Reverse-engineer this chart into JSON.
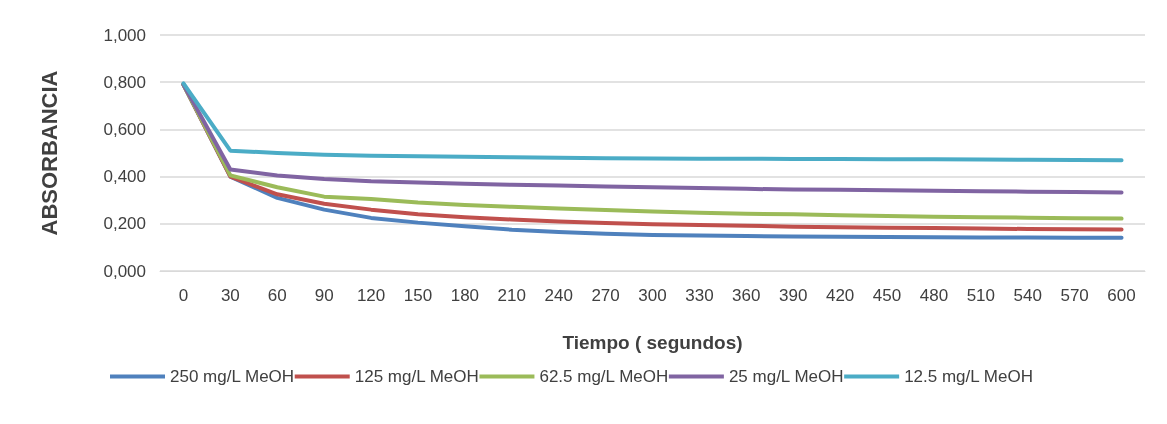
{
  "chart_data": {
    "type": "line",
    "xlabel": "Tiempo ( segundos)",
    "ylabel": "ABSORBANCIA",
    "categories": [
      "0",
      "30",
      "60",
      "90",
      "120",
      "150",
      "180",
      "210",
      "240",
      "270",
      "300",
      "330",
      "360",
      "390",
      "420",
      "450",
      "480",
      "510",
      "540",
      "570",
      "600"
    ],
    "series": [
      {
        "name": "250 mg/L MeOH",
        "color": "#4f81bd",
        "values": [
          0.79,
          0.4,
          0.31,
          0.26,
          0.225,
          0.205,
          0.19,
          0.175,
          0.165,
          0.158,
          0.153,
          0.15,
          0.148,
          0.146,
          0.145,
          0.144,
          0.143,
          0.142,
          0.142,
          0.141,
          0.141
        ]
      },
      {
        "name": "125 mg/L MeOH",
        "color": "#c0504d",
        "values": [
          0.79,
          0.4,
          0.325,
          0.285,
          0.26,
          0.24,
          0.228,
          0.218,
          0.21,
          0.203,
          0.198,
          0.195,
          0.192,
          0.188,
          0.185,
          0.183,
          0.182,
          0.18,
          0.178,
          0.177,
          0.176
        ]
      },
      {
        "name": "62.5 mg/L MeOH",
        "color": "#9bbb59",
        "values": [
          0.79,
          0.405,
          0.355,
          0.315,
          0.305,
          0.29,
          0.28,
          0.272,
          0.265,
          0.258,
          0.252,
          0.247,
          0.243,
          0.24,
          0.236,
          0.233,
          0.23,
          0.228,
          0.226,
          0.224,
          0.222
        ]
      },
      {
        "name": "25 mg/L MeOH",
        "color": "#8064a2",
        "values": [
          0.79,
          0.43,
          0.405,
          0.39,
          0.38,
          0.375,
          0.37,
          0.365,
          0.362,
          0.358,
          0.355,
          0.352,
          0.348,
          0.345,
          0.344,
          0.342,
          0.34,
          0.338,
          0.336,
          0.335,
          0.333
        ]
      },
      {
        "name": "12.5 mg/L MeOH",
        "color": "#4bacc6",
        "values": [
          0.795,
          0.51,
          0.5,
          0.493,
          0.488,
          0.486,
          0.484,
          0.482,
          0.48,
          0.478,
          0.477,
          0.476,
          0.476,
          0.475,
          0.475,
          0.474,
          0.473,
          0.472,
          0.471,
          0.47,
          0.469
        ]
      }
    ],
    "ylim": [
      0,
      1
    ],
    "yticks": [
      {
        "value": 0,
        "label": "0,000"
      },
      {
        "value": 0.2,
        "label": "0,200"
      },
      {
        "value": 0.4,
        "label": "0,400"
      },
      {
        "value": 0.6,
        "label": "0,600"
      },
      {
        "value": 0.8,
        "label": "0,800"
      },
      {
        "value": 1,
        "label": "1,000"
      }
    ],
    "grid": "y",
    "legend": "bottom",
    "marker": "none",
    "line_style": "solid"
  }
}
